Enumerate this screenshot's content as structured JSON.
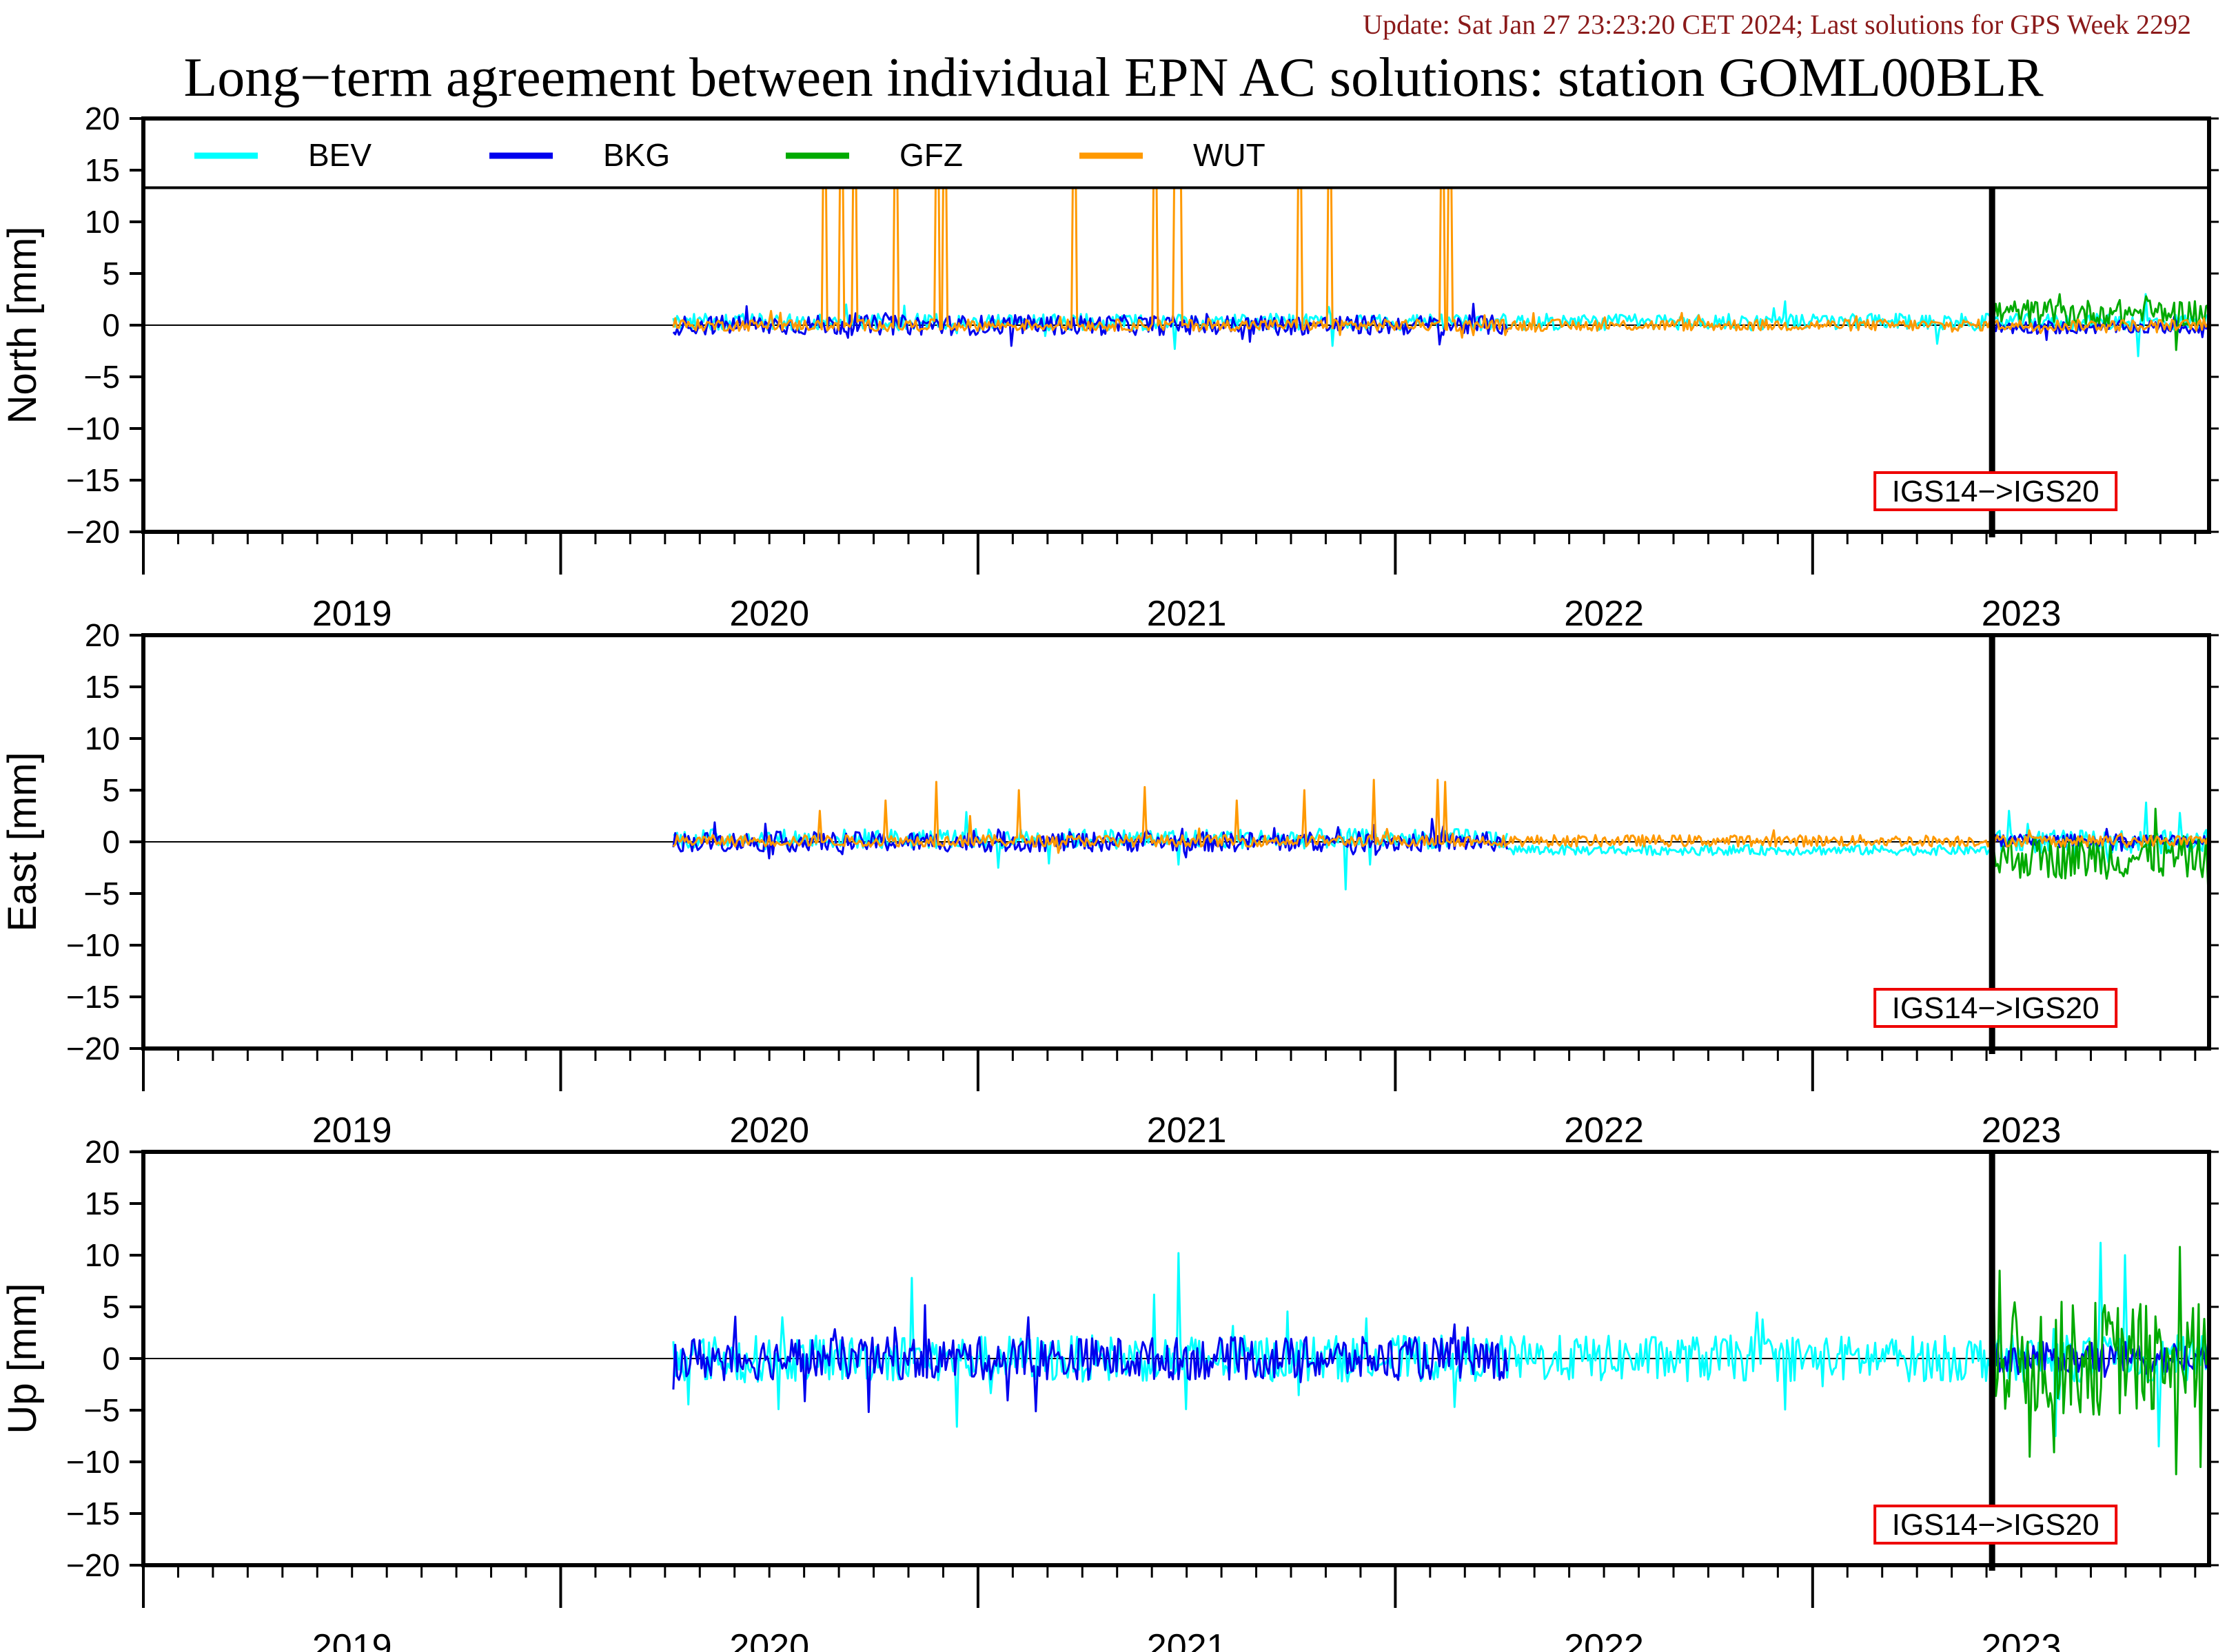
{
  "header": {
    "update_text": "Update: Sat Jan 27 23:23:20 CET 2024; Last solutions for GPS Week 2292",
    "title": "Long−term agreement between individual EPN AC solutions: station GOML00BLR"
  },
  "colors": {
    "BEV": "#00ffff",
    "BKG": "#0000ee",
    "GFZ": "#00aa00",
    "WUT": "#ff9900",
    "update_text": "#8b1a1a",
    "marker_box": "#ee0000"
  },
  "chart_data": {
    "type": "line",
    "x_unit": "year",
    "xlim": [
      2018.5,
      2023.45
    ],
    "ylim": [
      -20,
      20
    ],
    "y_ticks": [
      20,
      15,
      10,
      5,
      0,
      -5,
      -10,
      -15,
      -20
    ],
    "year_labels": [
      "2019",
      "2020",
      "2021",
      "2022",
      "2023"
    ],
    "legend": {
      "placement": "top, inside North panel",
      "entries": [
        "BEV",
        "BKG",
        "GFZ",
        "WUT"
      ]
    },
    "event_marker": {
      "x": 2022.93,
      "label": "IGS14−>IGS20"
    },
    "panels": [
      {
        "ylabel": "North [mm]",
        "series": [
          {
            "name": "BEV",
            "color": "#00ffff",
            "segments": [
              {
                "x0": 2019.77,
                "x1": 2023.45,
                "base": 0.3,
                "noise": 0.5,
                "spikes": [
                  [
                    2020.97,
                    -2.3
                  ],
                  [
                    2021.35,
                    -2.0
                  ],
                  [
                    2022.8,
                    -1.8
                  ],
                  [
                    2023.28,
                    -3.0
                  ],
                  [
                    2023.3,
                    3.0
                  ]
                ]
              }
            ]
          },
          {
            "name": "BKG",
            "color": "#0000ee",
            "segments": [
              {
                "x0": 2019.77,
                "x1": 2021.77,
                "base": 0.0,
                "noise": 0.6,
                "spikes": [
                  [
                    2020.58,
                    -2.0
                  ]
                ]
              },
              {
                "x0": 2022.93,
                "x1": 2023.45,
                "base": -0.2,
                "noise": 0.4,
                "spikes": []
              }
            ]
          },
          {
            "name": "GFZ",
            "color": "#00aa00",
            "segments": [
              {
                "x0": 2022.93,
                "x1": 2023.45,
                "base": 1.2,
                "noise": 0.8,
                "spikes": [
                  [
                    2023.09,
                    3.0
                  ],
                  [
                    2023.3,
                    2.8
                  ],
                  [
                    2023.37,
                    -2.4
                  ]
                ]
              }
            ]
          },
          {
            "name": "WUT",
            "color": "#ff9900",
            "segments": [
              {
                "x0": 2019.77,
                "x1": 2023.45,
                "base": 0.0,
                "noise": 0.35,
                "spikes": [
                  [
                    2020.13,
                    20
                  ],
                  [
                    2020.17,
                    20
                  ],
                  [
                    2020.2,
                    20
                  ],
                  [
                    2020.3,
                    20
                  ],
                  [
                    2020.4,
                    20
                  ],
                  [
                    2020.42,
                    20
                  ],
                  [
                    2020.73,
                    20
                  ],
                  [
                    2020.92,
                    20
                  ],
                  [
                    2020.97,
                    20
                  ],
                  [
                    2020.98,
                    20
                  ],
                  [
                    2021.27,
                    20
                  ],
                  [
                    2021.34,
                    20
                  ],
                  [
                    2021.61,
                    20
                  ],
                  [
                    2021.63,
                    20
                  ]
                ]
              }
            ]
          }
        ]
      },
      {
        "ylabel": "East [mm]",
        "series": [
          {
            "name": "BEV",
            "color": "#00ffff",
            "segments": [
              {
                "x0": 2019.77,
                "x1": 2021.77,
                "base": 0.3,
                "noise": 0.6,
                "spikes": [
                  [
                    2020.55,
                    -2.5
                  ],
                  [
                    2020.98,
                    -2.2
                  ],
                  [
                    2021.38,
                    -4.6
                  ]
                ]
              },
              {
                "x0": 2021.77,
                "x1": 2022.93,
                "base": -0.8,
                "noise": 0.3,
                "spikes": []
              },
              {
                "x0": 2022.93,
                "x1": 2023.45,
                "base": 0.0,
                "noise": 0.7,
                "spikes": [
                  [
                    2022.97,
                    3.0
                  ],
                  [
                    2023.3,
                    3.8
                  ],
                  [
                    2023.38,
                    2.8
                  ]
                ]
              }
            ]
          },
          {
            "name": "BKG",
            "color": "#0000ee",
            "segments": [
              {
                "x0": 2019.77,
                "x1": 2021.77,
                "base": 0.0,
                "noise": 0.6,
                "spikes": [
                  [
                    2020.0,
                    -1.6
                  ],
                  [
                    2021.0,
                    -1.5
                  ]
                ]
              },
              {
                "x0": 2022.93,
                "x1": 2023.45,
                "base": 0.1,
                "noise": 0.4,
                "spikes": []
              }
            ]
          },
          {
            "name": "GFZ",
            "color": "#00aa00",
            "segments": [
              {
                "x0": 2022.93,
                "x1": 2023.45,
                "base": -1.5,
                "noise": 1.3,
                "spikes": [
                  [
                    2023.32,
                    3.2
                  ],
                  [
                    2023.45,
                    -4.2
                  ]
                ]
              }
            ]
          },
          {
            "name": "WUT",
            "color": "#ff9900",
            "segments": [
              {
                "x0": 2019.77,
                "x1": 2023.45,
                "base": 0.1,
                "noise": 0.35,
                "spikes": [
                  [
                    2020.12,
                    3.0
                  ],
                  [
                    2020.28,
                    4.0
                  ],
                  [
                    2020.4,
                    5.8
                  ],
                  [
                    2020.48,
                    2.5
                  ],
                  [
                    2020.6,
                    5.0
                  ],
                  [
                    2020.9,
                    5.3
                  ],
                  [
                    2021.12,
                    4.0
                  ],
                  [
                    2021.28,
                    5.0
                  ],
                  [
                    2021.45,
                    6.0
                  ],
                  [
                    2021.6,
                    6.0
                  ],
                  [
                    2021.62,
                    5.8
                  ]
                ]
              }
            ]
          }
        ]
      },
      {
        "ylabel": "Up [mm]",
        "series": [
          {
            "name": "BEV",
            "color": "#00ffff",
            "segments": [
              {
                "x0": 2019.77,
                "x1": 2023.45,
                "base": 0.0,
                "noise": 1.4,
                "spikes": [
                  [
                    2020.34,
                    7.8
                  ],
                  [
                    2020.45,
                    -6.6
                  ],
                  [
                    2020.98,
                    10.2
                  ],
                  [
                    2020.02,
                    -4.9
                  ],
                  [
                    2021.0,
                    -4.9
                  ],
                  [
                    2023.08,
                    -7.5
                  ],
                  [
                    2023.19,
                    11.2
                  ],
                  [
                    2023.25,
                    10.0
                  ],
                  [
                    2023.33,
                    -8.5
                  ]
                ]
              }
            ]
          },
          {
            "name": "BKG",
            "color": "#0000ee",
            "segments": [
              {
                "x0": 2019.77,
                "x1": 2021.77,
                "base": 0.0,
                "noise": 1.3,
                "spikes": [
                  [
                    2019.77,
                    -3.0
                  ],
                  [
                    2020.3,
                    3.0
                  ],
                  [
                    2020.64,
                    -5.1
                  ],
                  [
                    2021.64,
                    3.3
                  ]
                ]
              },
              {
                "x0": 2022.93,
                "x1": 2023.45,
                "base": 0.0,
                "noise": 1.0,
                "spikes": []
              }
            ]
          },
          {
            "name": "GFZ",
            "color": "#00aa00",
            "segments": [
              {
                "x0": 2022.93,
                "x1": 2023.45,
                "base": 0.0,
                "noise": 3.5,
                "spikes": [
                  [
                    2022.95,
                    8.5
                  ],
                  [
                    2023.38,
                    10.8
                  ],
                  [
                    2023.37,
                    -11.2
                  ],
                  [
                    2023.43,
                    -10.5
                  ],
                  [
                    2023.02,
                    -9.5
                  ]
                ]
              }
            ]
          }
        ]
      }
    ]
  }
}
